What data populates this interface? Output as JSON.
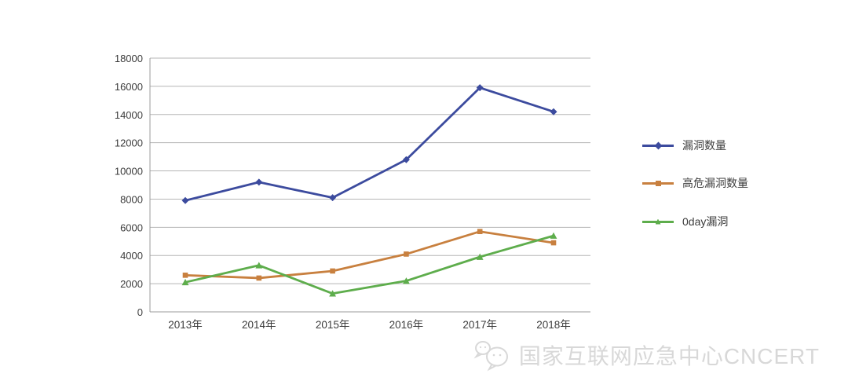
{
  "watermark": {
    "label": "国家互联网应急中心CNCERT",
    "color": "#d8d8d8"
  },
  "colors": {
    "gridline": "#b5b5b5",
    "axis": "#9b9b9b",
    "tick_text": "#3d3d3d"
  },
  "chart_data": {
    "type": "line",
    "title": "",
    "xlabel": "",
    "ylabel": "",
    "grid": true,
    "legend_position": "right",
    "categories": [
      "2013年",
      "2014年",
      "2015年",
      "2016年",
      "2017年",
      "2018年"
    ],
    "series": [
      {
        "name": "漏洞数量",
        "color": "#3c4b9e",
        "marker": "diamond",
        "values": [
          7900,
          9200,
          8100,
          10800,
          15900,
          14200
        ]
      },
      {
        "name": "高危漏洞数量",
        "color": "#c8803f",
        "marker": "square",
        "values": [
          2600,
          2400,
          2900,
          4100,
          5700,
          4900
        ]
      },
      {
        "name": "0day漏洞",
        "color": "#5ead4c",
        "marker": "triangle",
        "values": [
          2100,
          3300,
          1300,
          2200,
          3900,
          5400
        ]
      }
    ],
    "ylim": [
      0,
      18000
    ],
    "ytick_step": 2000,
    "yticks": [
      "0",
      "2000",
      "4000",
      "6000",
      "8000",
      "10000",
      "12000",
      "14000",
      "16000",
      "18000"
    ]
  }
}
